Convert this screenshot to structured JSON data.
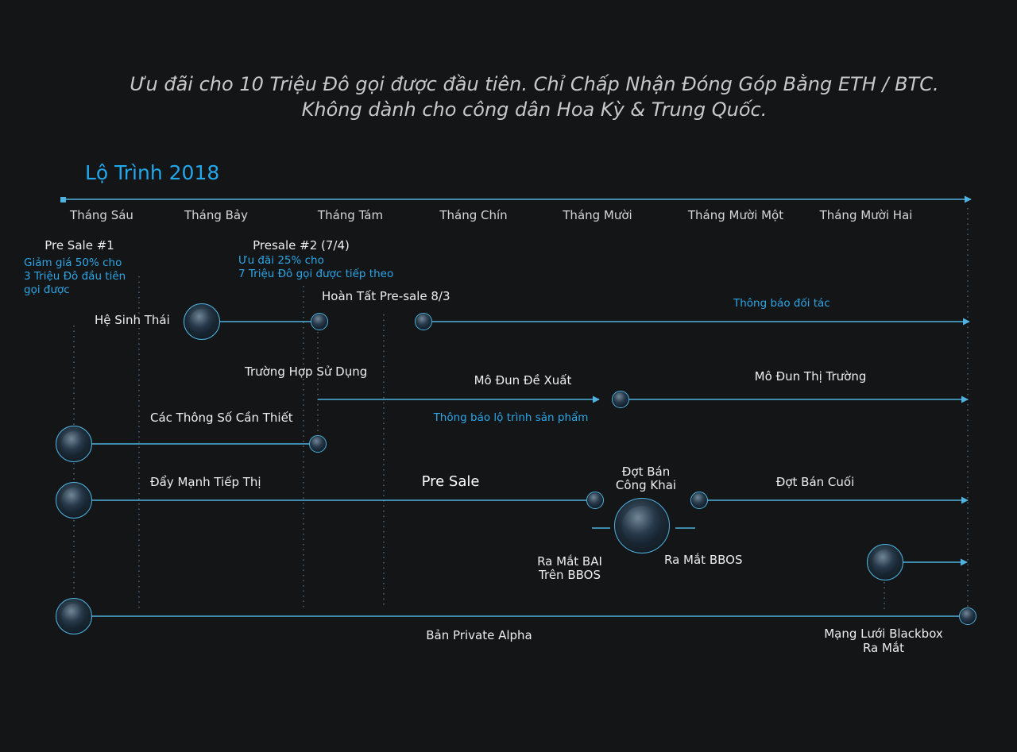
{
  "notice": {
    "line1": "Ưu đãi cho 10 Triệu Đô gọi được đầu tiên. Chỉ Chấp Nhận Đóng Góp Bằng ETH / BTC.",
    "line2": "Không dành cho công dân Hoa Kỳ & Trung Quốc."
  },
  "roadmap": {
    "title": "Lộ Trình 2018",
    "months": [
      "Tháng Sáu",
      "Tháng Bảy",
      "Tháng Tám",
      "Tháng Chín",
      "Tháng Mười",
      "Tháng Mười Một",
      "Tháng Mười Hai"
    ]
  },
  "presale1": {
    "title": "Pre Sale #1",
    "desc1": "Giảm giá 50% cho",
    "desc2": "3 Triệu Đô đầu tiên",
    "desc3": "gọi được"
  },
  "presale2": {
    "title": "Presale #2 (7/4)",
    "desc1": "Ưu đãi 25% cho",
    "desc2": "7 Triệu Đô gọi được tiếp theo"
  },
  "labels": {
    "ecosystem": "Hệ Sinh Thái",
    "presale_done": "Hoàn Tất Pre-sale 8/3",
    "partner_announce": "Thông báo đối tác",
    "use_cases": "Trường Hợp Sử Dụng",
    "proposal_module": "Mô Đun Đề Xuất",
    "market_module": "Mô Đun Thị Trường",
    "product_roadmap": "Thông báo lộ trình sản phẩm",
    "specs": "Các Thông Số Cần Thiết",
    "marketing": "Đẩy Mạnh Tiếp Thị",
    "pre_sale": "Pre Sale",
    "public_sale_1": "Đợt Bán",
    "public_sale_2": "Công Khai",
    "final_sale": "Đợt Bán Cuối",
    "bai_launch_1": "Ra Mắt BAI",
    "bai_launch_2": "Trên BBOS",
    "bbos_launch": "Ra Mắt BBOS",
    "private_alpha": "Bản Private Alpha",
    "network_launch_1": "Mạng Lưới Blackbox",
    "network_launch_2": "Ra Mắt"
  },
  "colors": {
    "background": "#141517",
    "accent": "#22a7ea",
    "line": "#4fb2e0",
    "text": "#ededed"
  }
}
